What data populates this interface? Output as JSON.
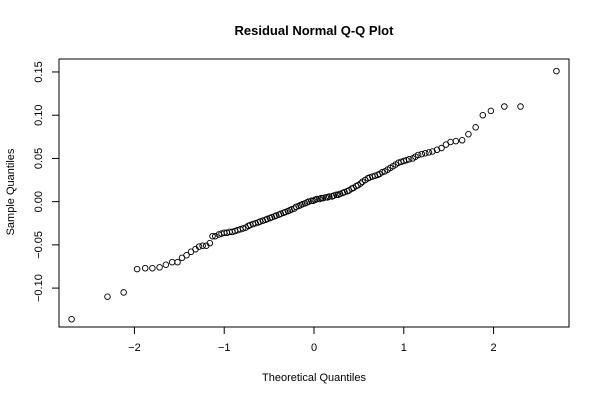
{
  "chart_data": {
    "type": "scatter",
    "title": "Residual Normal Q-Q Plot",
    "xlabel": "Theoretical Quantiles",
    "ylabel": "Sample Quantiles",
    "xlim": [
      -2.84,
      2.84
    ],
    "ylim": [
      -0.145,
      0.165
    ],
    "x_ticks": [
      -2,
      -1,
      0,
      1,
      2
    ],
    "x_tick_labels": [
      "−2",
      "−1",
      "0",
      "1",
      "2"
    ],
    "y_ticks": [
      -0.1,
      -0.05,
      0.0,
      0.05,
      0.1,
      0.15
    ],
    "y_tick_labels": [
      "−0.10",
      "−0.05",
      "0.00",
      "0.05",
      "0.10",
      "0.15"
    ],
    "grid": false,
    "marker": "open-circle",
    "marker_color": "#000000",
    "series": [
      {
        "points": [
          [
            -2.7,
            -0.136
          ],
          [
            -2.3,
            -0.11
          ],
          [
            -2.12,
            -0.105
          ],
          [
            -1.97,
            -0.078
          ],
          [
            -1.88,
            -0.077
          ],
          [
            -1.8,
            -0.077
          ],
          [
            -1.72,
            -0.076
          ],
          [
            -1.65,
            -0.073
          ],
          [
            -1.58,
            -0.07
          ],
          [
            -1.52,
            -0.07
          ],
          [
            -1.47,
            -0.065
          ],
          [
            -1.42,
            -0.062
          ],
          [
            -1.37,
            -0.058
          ],
          [
            -1.32,
            -0.055
          ],
          [
            -1.28,
            -0.052
          ],
          [
            -1.24,
            -0.051
          ],
          [
            -1.2,
            -0.051
          ],
          [
            -1.16,
            -0.048
          ],
          [
            -1.13,
            -0.04
          ],
          [
            -1.1,
            -0.04
          ],
          [
            -1.06,
            -0.038
          ],
          [
            -1.03,
            -0.037
          ],
          [
            -1.0,
            -0.036
          ],
          [
            -0.97,
            -0.036
          ],
          [
            -0.94,
            -0.035
          ],
          [
            -0.91,
            -0.035
          ],
          [
            -0.88,
            -0.034
          ],
          [
            -0.85,
            -0.033
          ],
          [
            -0.82,
            -0.032
          ],
          [
            -0.79,
            -0.031
          ],
          [
            -0.76,
            -0.03
          ],
          [
            -0.73,
            -0.028
          ],
          [
            -0.71,
            -0.027
          ],
          [
            -0.68,
            -0.026
          ],
          [
            -0.65,
            -0.025
          ],
          [
            -0.62,
            -0.024
          ],
          [
            -0.6,
            -0.023
          ],
          [
            -0.57,
            -0.022
          ],
          [
            -0.54,
            -0.021
          ],
          [
            -0.52,
            -0.02
          ],
          [
            -0.49,
            -0.019
          ],
          [
            -0.47,
            -0.018
          ],
          [
            -0.44,
            -0.017
          ],
          [
            -0.42,
            -0.016
          ],
          [
            -0.39,
            -0.015
          ],
          [
            -0.37,
            -0.014
          ],
          [
            -0.34,
            -0.013
          ],
          [
            -0.32,
            -0.012
          ],
          [
            -0.29,
            -0.011
          ],
          [
            -0.27,
            -0.01
          ],
          [
            -0.25,
            -0.009
          ],
          [
            -0.22,
            -0.008
          ],
          [
            -0.2,
            -0.006
          ],
          [
            -0.17,
            -0.005
          ],
          [
            -0.15,
            -0.004
          ],
          [
            -0.13,
            -0.003
          ],
          [
            -0.1,
            -0.002
          ],
          [
            -0.08,
            -0.001
          ],
          [
            -0.06,
            0.0
          ],
          [
            -0.03,
            0.001
          ],
          [
            -0.01,
            0.001
          ],
          [
            0.01,
            0.002
          ],
          [
            0.03,
            0.003
          ],
          [
            0.06,
            0.003
          ],
          [
            0.08,
            0.004
          ],
          [
            0.1,
            0.004
          ],
          [
            0.13,
            0.005
          ],
          [
            0.15,
            0.005
          ],
          [
            0.17,
            0.006
          ],
          [
            0.2,
            0.006
          ],
          [
            0.22,
            0.007
          ],
          [
            0.25,
            0.008
          ],
          [
            0.27,
            0.008
          ],
          [
            0.29,
            0.009
          ],
          [
            0.32,
            0.01
          ],
          [
            0.34,
            0.011
          ],
          [
            0.37,
            0.012
          ],
          [
            0.39,
            0.013
          ],
          [
            0.42,
            0.015
          ],
          [
            0.44,
            0.016
          ],
          [
            0.47,
            0.018
          ],
          [
            0.49,
            0.019
          ],
          [
            0.52,
            0.021
          ],
          [
            0.54,
            0.023
          ],
          [
            0.57,
            0.025
          ],
          [
            0.6,
            0.027
          ],
          [
            0.62,
            0.028
          ],
          [
            0.65,
            0.029
          ],
          [
            0.68,
            0.03
          ],
          [
            0.71,
            0.031
          ],
          [
            0.73,
            0.032
          ],
          [
            0.76,
            0.034
          ],
          [
            0.79,
            0.035
          ],
          [
            0.82,
            0.037
          ],
          [
            0.85,
            0.039
          ],
          [
            0.88,
            0.041
          ],
          [
            0.91,
            0.043
          ],
          [
            0.94,
            0.045
          ],
          [
            0.97,
            0.046
          ],
          [
            1.0,
            0.047
          ],
          [
            1.03,
            0.048
          ],
          [
            1.06,
            0.049
          ],
          [
            1.1,
            0.05
          ],
          [
            1.13,
            0.052
          ],
          [
            1.16,
            0.054
          ],
          [
            1.2,
            0.055
          ],
          [
            1.24,
            0.056
          ],
          [
            1.28,
            0.057
          ],
          [
            1.32,
            0.058
          ],
          [
            1.37,
            0.06
          ],
          [
            1.42,
            0.062
          ],
          [
            1.47,
            0.066
          ],
          [
            1.52,
            0.069
          ],
          [
            1.58,
            0.07
          ],
          [
            1.65,
            0.071
          ],
          [
            1.72,
            0.078
          ],
          [
            1.8,
            0.086
          ],
          [
            1.88,
            0.1
          ],
          [
            1.97,
            0.105
          ],
          [
            2.12,
            0.11
          ],
          [
            2.3,
            0.11
          ],
          [
            2.7,
            0.151
          ]
        ]
      }
    ]
  }
}
